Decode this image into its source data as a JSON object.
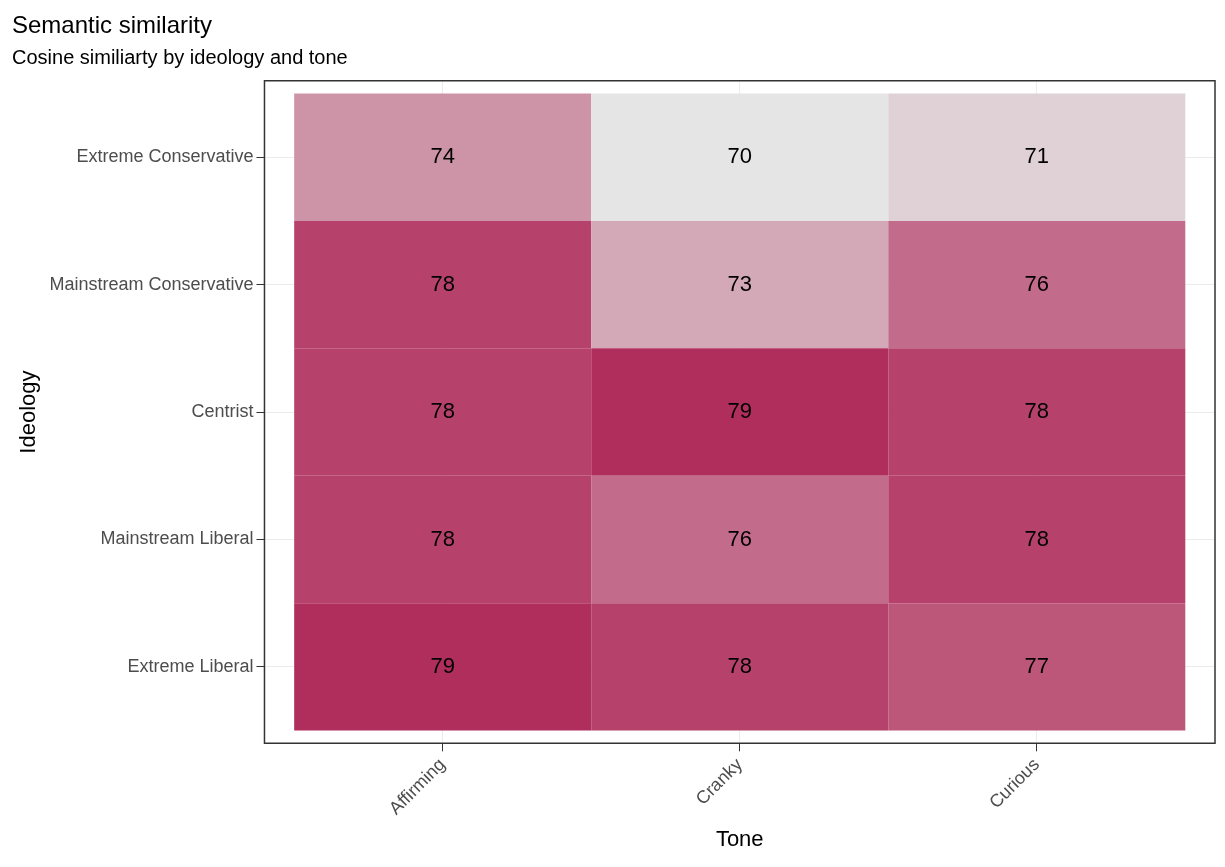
{
  "chart_data": {
    "type": "heatmap",
    "title": "Semantic similarity",
    "subtitle": "Cosine similiarty by ideology and tone",
    "xlabel": "Tone",
    "ylabel": "Ideology",
    "categories": [
      "Affirming",
      "Cranky",
      "Curious"
    ],
    "y_categories": [
      "Extreme Conservative",
      "Mainstream Conservative",
      "Centrist",
      "Mainstream Liberal",
      "Extreme Liberal"
    ],
    "cells": [
      [
        74,
        70,
        71
      ],
      [
        78,
        73,
        76
      ],
      [
        78,
        79,
        78
      ],
      [
        78,
        76,
        78
      ],
      [
        79,
        78,
        77
      ]
    ],
    "data_labels": true,
    "grid": true,
    "legend": false
  }
}
